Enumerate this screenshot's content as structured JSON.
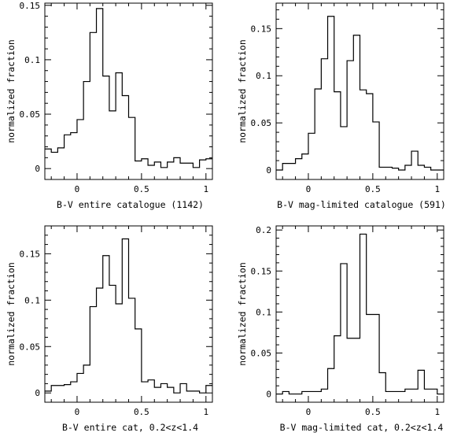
{
  "chart_data": [
    {
      "type": "histogram",
      "xlabel": "B-V entire catalogue (1142)",
      "ylabel": "normalized fraction",
      "xlim": [
        -0.25,
        1.05
      ],
      "ylim": [
        -0.01,
        0.152
      ],
      "xticks": [
        0,
        0.5,
        1
      ],
      "xtick_labels": [
        "0",
        "0.5",
        "1"
      ],
      "yticks": [
        0,
        0.05,
        0.1,
        0.15
      ],
      "ytick_labels": [
        "0",
        "0.05",
        "0.1",
        "0.15"
      ],
      "bin_edges": [
        -0.25,
        -0.2,
        -0.15,
        -0.1,
        -0.05,
        0.0,
        0.05,
        0.1,
        0.15,
        0.2,
        0.25,
        0.3,
        0.35,
        0.4,
        0.45,
        0.5,
        0.55,
        0.6,
        0.65,
        0.7,
        0.75,
        0.8,
        0.85,
        0.9,
        0.95,
        1.0,
        1.05
      ],
      "values": [
        0.018,
        0.015,
        0.019,
        0.031,
        0.033,
        0.045,
        0.08,
        0.125,
        0.147,
        0.085,
        0.053,
        0.088,
        0.067,
        0.047,
        0.007,
        0.009,
        0.003,
        0.006,
        0.001,
        0.006,
        0.01,
        0.005,
        0.005,
        0.001,
        0.008,
        0.009
      ]
    },
    {
      "type": "histogram",
      "xlabel": "B-V mag-limited catalogue (591)",
      "ylabel": "normalized fraction",
      "xlim": [
        -0.25,
        1.05
      ],
      "ylim": [
        -0.01,
        0.177
      ],
      "xticks": [
        0,
        0.5,
        1
      ],
      "xtick_labels": [
        "0",
        "0.5",
        "1"
      ],
      "yticks": [
        0,
        0.05,
        0.1,
        0.15
      ],
      "ytick_labels": [
        "0",
        "0.05",
        "0.1",
        "0.15"
      ],
      "bin_edges": [
        -0.25,
        -0.2,
        -0.15,
        -0.1,
        -0.05,
        0.0,
        0.05,
        0.1,
        0.15,
        0.2,
        0.25,
        0.3,
        0.35,
        0.4,
        0.45,
        0.5,
        0.55,
        0.6,
        0.65,
        0.7,
        0.75,
        0.8,
        0.85,
        0.9,
        0.95,
        1.0,
        1.05
      ],
      "values": [
        0.0,
        0.007,
        0.007,
        0.012,
        0.017,
        0.039,
        0.086,
        0.118,
        0.163,
        0.083,
        0.046,
        0.116,
        0.143,
        0.085,
        0.081,
        0.051,
        0.003,
        0.003,
        0.002,
        0.0,
        0.005,
        0.02,
        0.005,
        0.003,
        0.0,
        0.0
      ]
    },
    {
      "type": "histogram",
      "xlabel": "B-V entire cat, 0.2<z<1.4",
      "ylabel": "normalized fraction",
      "xlim": [
        -0.25,
        1.05
      ],
      "ylim": [
        -0.01,
        0.18
      ],
      "xticks": [
        0,
        0.5,
        1
      ],
      "xtick_labels": [
        "0",
        "0.5",
        "1"
      ],
      "yticks": [
        0,
        0.05,
        0.1,
        0.15
      ],
      "ytick_labels": [
        "0",
        "0.05",
        "0.1",
        "0.15"
      ],
      "bin_edges": [
        -0.25,
        -0.2,
        -0.15,
        -0.1,
        -0.05,
        0.0,
        0.05,
        0.1,
        0.15,
        0.2,
        0.25,
        0.3,
        0.35,
        0.4,
        0.45,
        0.5,
        0.55,
        0.6,
        0.65,
        0.7,
        0.75,
        0.8,
        0.85,
        0.9,
        0.95,
        1.0,
        1.05
      ],
      "values": [
        0.002,
        0.008,
        0.008,
        0.009,
        0.012,
        0.021,
        0.03,
        0.093,
        0.113,
        0.148,
        0.116,
        0.096,
        0.166,
        0.102,
        0.069,
        0.012,
        0.014,
        0.006,
        0.01,
        0.006,
        0.0,
        0.01,
        0.002,
        0.002,
        0.0,
        0.008
      ]
    },
    {
      "type": "histogram",
      "xlabel": "B-V mag-limited cat, 0.2<z<1.4",
      "ylabel": "normalized fraction",
      "xlim": [
        -0.25,
        1.05
      ],
      "ylim": [
        -0.01,
        0.205
      ],
      "xticks": [
        0,
        0.5,
        1
      ],
      "xtick_labels": [
        "0",
        "0.5",
        "1"
      ],
      "yticks": [
        0,
        0.05,
        0.1,
        0.15,
        0.2
      ],
      "ytick_labels": [
        "0",
        "0.05",
        "0.1",
        "0.15",
        "0.2"
      ],
      "bin_edges": [
        -0.25,
        -0.2,
        -0.15,
        -0.1,
        -0.05,
        0.0,
        0.05,
        0.1,
        0.15,
        0.2,
        0.25,
        0.3,
        0.35,
        0.4,
        0.45,
        0.5,
        0.55,
        0.6,
        0.65,
        0.7,
        0.75,
        0.8,
        0.85,
        0.9,
        0.95,
        1.0,
        1.05
      ],
      "values": [
        0.0,
        0.003,
        0.0,
        0.0,
        0.003,
        0.003,
        0.003,
        0.006,
        0.031,
        0.071,
        0.159,
        0.068,
        0.068,
        0.195,
        0.097,
        0.097,
        0.026,
        0.003,
        0.003,
        0.003,
        0.006,
        0.006,
        0.029,
        0.006,
        0.006,
        0.0
      ]
    }
  ]
}
